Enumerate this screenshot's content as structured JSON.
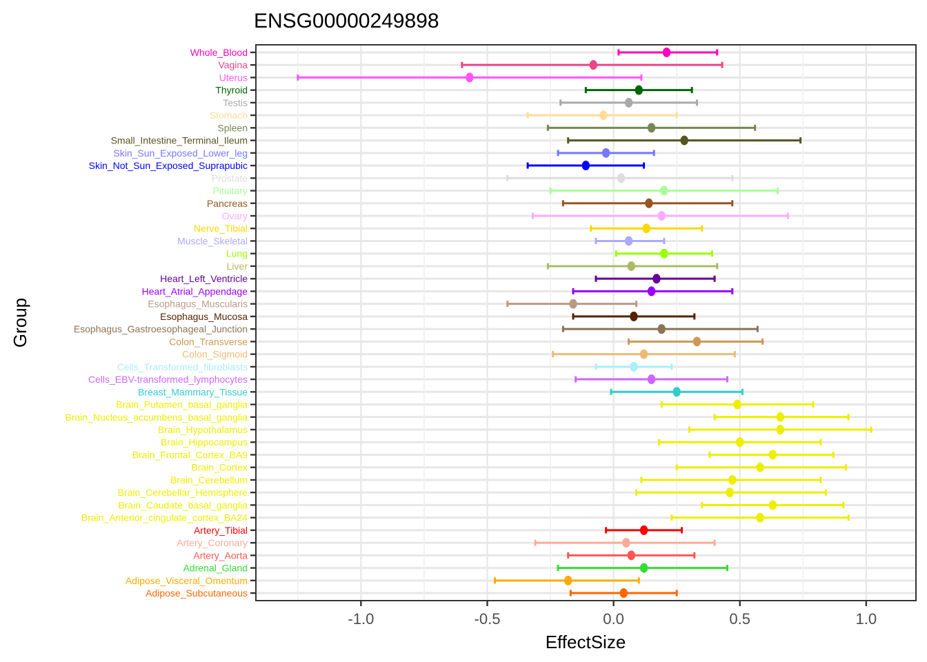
{
  "chart_data": {
    "type": "errorbar",
    "title": "ENSG00000249898",
    "xlabel": "EffectSize",
    "ylabel": "Group",
    "xlim": [
      -1.416,
      1.197
    ],
    "grid": "on",
    "legend": "none",
    "x_ticks": [
      {
        "value": -1.0,
        "label": "-1.0"
      },
      {
        "value": -0.5,
        "label": "-0.5"
      },
      {
        "value": 0.0,
        "label": "0.0"
      },
      {
        "value": 0.5,
        "label": "0.5"
      },
      {
        "value": 1.0,
        "label": "1.0"
      }
    ],
    "x_minor_gridlines": [
      -1.25,
      -0.75,
      -0.25,
      0.25,
      0.75
    ],
    "groups": [
      {
        "name": "Whole_Blood",
        "color": "#FF00BB",
        "effect_size": 0.21,
        "ci_low": 0.02,
        "ci_high": 0.41
      },
      {
        "name": "Vagina",
        "color": "#EE4488",
        "effect_size": -0.08,
        "ci_low": -0.6,
        "ci_high": 0.43
      },
      {
        "name": "Uterus",
        "color": "#FF55FF",
        "effect_size": -0.57,
        "ci_low": -1.25,
        "ci_high": 0.11
      },
      {
        "name": "Thyroid",
        "color": "#006600",
        "effect_size": 0.1,
        "ci_low": -0.11,
        "ci_high": 0.31
      },
      {
        "name": "Testis",
        "color": "#AAAAAA",
        "effect_size": 0.06,
        "ci_low": -0.21,
        "ci_high": 0.33
      },
      {
        "name": "Stomach",
        "color": "#FFDD99",
        "effect_size": -0.04,
        "ci_low": -0.34,
        "ci_high": 0.25
      },
      {
        "name": "Spleen",
        "color": "#778855",
        "effect_size": 0.15,
        "ci_low": -0.26,
        "ci_high": 0.56
      },
      {
        "name": "Small_Intestine_Terminal_Ileum",
        "color": "#555522",
        "effect_size": 0.28,
        "ci_low": -0.18,
        "ci_high": 0.74
      },
      {
        "name": "Skin_Sun_Exposed_Lower_leg",
        "color": "#7777FF",
        "effect_size": -0.03,
        "ci_low": -0.22,
        "ci_high": 0.16
      },
      {
        "name": "Skin_Not_Sun_Exposed_Suprapubic",
        "color": "#0000FF",
        "effect_size": -0.11,
        "ci_low": -0.34,
        "ci_high": 0.12
      },
      {
        "name": "Prostate",
        "color": "#DDDDDD",
        "effect_size": 0.03,
        "ci_low": -0.42,
        "ci_high": 0.47
      },
      {
        "name": "Pituitary",
        "color": "#AAFF99",
        "effect_size": 0.2,
        "ci_low": -0.25,
        "ci_high": 0.65
      },
      {
        "name": "Pancreas",
        "color": "#995522",
        "effect_size": 0.14,
        "ci_low": -0.2,
        "ci_high": 0.47
      },
      {
        "name": "Ovary",
        "color": "#FFAAFF",
        "effect_size": 0.19,
        "ci_low": -0.32,
        "ci_high": 0.69
      },
      {
        "name": "Nerve_Tibial",
        "color": "#FFD700",
        "effect_size": 0.13,
        "ci_low": -0.09,
        "ci_high": 0.35
      },
      {
        "name": "Muscle_Skeletal",
        "color": "#AAAAFF",
        "effect_size": 0.06,
        "ci_low": -0.07,
        "ci_high": 0.2
      },
      {
        "name": "Lung",
        "color": "#99FF00",
        "effect_size": 0.2,
        "ci_low": 0.01,
        "ci_high": 0.39
      },
      {
        "name": "Liver",
        "color": "#AABB66",
        "effect_size": 0.07,
        "ci_low": -0.26,
        "ci_high": 0.41
      },
      {
        "name": "Heart_Left_Ventricle",
        "color": "#660099",
        "effect_size": 0.17,
        "ci_low": -0.07,
        "ci_high": 0.4
      },
      {
        "name": "Heart_Atrial_Appendage",
        "color": "#9900FF",
        "effect_size": 0.15,
        "ci_low": -0.16,
        "ci_high": 0.47
      },
      {
        "name": "Esophagus_Muscularis",
        "color": "#BB9988",
        "effect_size": -0.16,
        "ci_low": -0.42,
        "ci_high": 0.09
      },
      {
        "name": "Esophagus_Mucosa",
        "color": "#552200",
        "effect_size": 0.08,
        "ci_low": -0.16,
        "ci_high": 0.32
      },
      {
        "name": "Esophagus_Gastroesophageal_Junction",
        "color": "#8B7355",
        "effect_size": 0.19,
        "ci_low": -0.2,
        "ci_high": 0.57
      },
      {
        "name": "Colon_Transverse",
        "color": "#CC9955",
        "effect_size": 0.33,
        "ci_low": 0.06,
        "ci_high": 0.59
      },
      {
        "name": "Colon_Sigmoid",
        "color": "#EEBB77",
        "effect_size": 0.12,
        "ci_low": -0.24,
        "ci_high": 0.48
      },
      {
        "name": "Cells_Transformed_fibroblasts",
        "color": "#AAEEFF",
        "effect_size": 0.08,
        "ci_low": -0.07,
        "ci_high": 0.23
      },
      {
        "name": "Cells_EBV-transformed_lymphocytes",
        "color": "#CC66FF",
        "effect_size": 0.15,
        "ci_low": -0.15,
        "ci_high": 0.45
      },
      {
        "name": "Breast_Mammary_Tissue",
        "color": "#33CCCC",
        "effect_size": 0.25,
        "ci_low": -0.01,
        "ci_high": 0.51
      },
      {
        "name": "Brain_Putamen_basal_ganglia",
        "color": "#EEEE00",
        "effect_size": 0.49,
        "ci_low": 0.19,
        "ci_high": 0.79
      },
      {
        "name": "Brain_Nucleus_accumbens_basal_ganglia",
        "color": "#EEEE00",
        "effect_size": 0.66,
        "ci_low": 0.4,
        "ci_high": 0.93
      },
      {
        "name": "Brain_Hypothalamus",
        "color": "#EEEE00",
        "effect_size": 0.66,
        "ci_low": 0.3,
        "ci_high": 1.02
      },
      {
        "name": "Brain_Hippocampus",
        "color": "#EEEE00",
        "effect_size": 0.5,
        "ci_low": 0.18,
        "ci_high": 0.82
      },
      {
        "name": "Brain_Frontal_Cortex_BA9",
        "color": "#EEEE00",
        "effect_size": 0.63,
        "ci_low": 0.38,
        "ci_high": 0.87
      },
      {
        "name": "Brain_Cortex",
        "color": "#EEEE00",
        "effect_size": 0.58,
        "ci_low": 0.25,
        "ci_high": 0.92
      },
      {
        "name": "Brain_Cerebellum",
        "color": "#EEEE00",
        "effect_size": 0.47,
        "ci_low": 0.11,
        "ci_high": 0.82
      },
      {
        "name": "Brain_Cerebellar_Hemisphere",
        "color": "#EEEE00",
        "effect_size": 0.46,
        "ci_low": 0.09,
        "ci_high": 0.84
      },
      {
        "name": "Brain_Caudate_basal_ganglia",
        "color": "#EEEE00",
        "effect_size": 0.63,
        "ci_low": 0.35,
        "ci_high": 0.91
      },
      {
        "name": "Brain_Anterior_cingulate_cortex_BA24",
        "color": "#EEEE00",
        "effect_size": 0.58,
        "ci_low": 0.23,
        "ci_high": 0.93
      },
      {
        "name": "Artery_Tibial",
        "color": "#FF0000",
        "effect_size": 0.12,
        "ci_low": -0.03,
        "ci_high": 0.27
      },
      {
        "name": "Artery_Coronary",
        "color": "#FFAA99",
        "effect_size": 0.05,
        "ci_low": -0.31,
        "ci_high": 0.4
      },
      {
        "name": "Artery_Aorta",
        "color": "#FF5555",
        "effect_size": 0.07,
        "ci_low": -0.18,
        "ci_high": 0.32
      },
      {
        "name": "Adrenal_Gland",
        "color": "#33DD33",
        "effect_size": 0.12,
        "ci_low": -0.22,
        "ci_high": 0.45
      },
      {
        "name": "Adipose_Visceral_Omentum",
        "color": "#FFAA00",
        "effect_size": -0.18,
        "ci_low": -0.47,
        "ci_high": 0.1
      },
      {
        "name": "Adipose_Subcutaneous",
        "color": "#FF6600",
        "effect_size": 0.04,
        "ci_low": -0.17,
        "ci_high": 0.25
      }
    ]
  },
  "colors": {
    "background": "#FFFFFF",
    "panel_border": "#333333",
    "tick_mark": "#333333",
    "gridline_major": "#E7E7E7",
    "gridline_minor": "#F0F0F0",
    "axis_text": "#4D4D4D",
    "title_text": "#000000"
  }
}
